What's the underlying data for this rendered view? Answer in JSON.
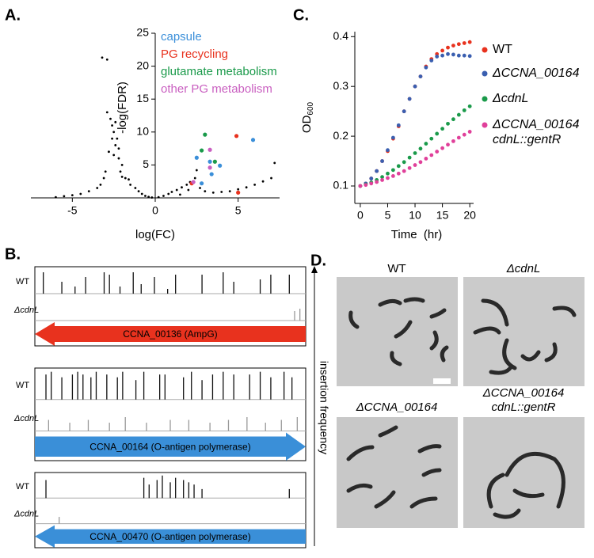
{
  "panels": {
    "a": "A.",
    "b": "B.",
    "c": "C.",
    "d": "D."
  },
  "chart_data": [
    {
      "type": "scatter",
      "xlabel": "log(FC)",
      "ylabel": "-log(FDR)",
      "xlim": [
        -7.5,
        7.5
      ],
      "ylim": [
        0,
        25
      ],
      "xticks": [
        -5,
        0,
        5
      ],
      "yticks": [
        5,
        10,
        15,
        20,
        25
      ],
      "series": [
        {
          "color": "#000000",
          "x": [
            -2.0,
            -2.2,
            -2.4,
            -2.5,
            -2.6,
            -2.8,
            -3.0,
            -2.3,
            -2.7,
            -2.9,
            -3.1,
            -3.3,
            -2.1,
            -1.8,
            -1.5,
            -1.2,
            -1.0,
            -0.8,
            -0.6,
            -0.4,
            -0.2,
            -2.5,
            -2.4,
            -2.6,
            -2.2,
            -3.5,
            -4.0,
            -4.5,
            -5.0,
            -5.5,
            -6.0,
            -2.9,
            -3.2,
            -1.6,
            -2.0,
            -2.8,
            0.2,
            0.5,
            0.8,
            1.0,
            1.3,
            1.6,
            1.9,
            2.1,
            2.4,
            2.7,
            3.0,
            3.5,
            4.0,
            4.5,
            5.0,
            5.5,
            6.0,
            6.5,
            7.0,
            1.5,
            2.0,
            2.5,
            7.2
          ],
          "values": [
            5,
            6,
            8,
            10,
            11,
            7,
            4,
            9,
            12,
            13,
            3,
            2,
            4,
            3,
            2,
            1.5,
            1,
            0.6,
            0.3,
            0.15,
            0.05,
            6.5,
            11.5,
            9,
            7.5,
            1.5,
            1,
            0.6,
            0.4,
            0.25,
            0.1,
            21,
            21.3,
            2.8,
            3.2,
            7,
            0.1,
            0.3,
            0.6,
            0.9,
            1.2,
            1.6,
            2.0,
            2.4,
            3.0,
            1.5,
            1.0,
            0.8,
            0.9,
            1.0,
            1.3,
            1.6,
            2.0,
            2.5,
            3.0,
            0.5,
            1.2,
            4.2,
            5.3
          ]
        },
        {
          "name": "capsule",
          "color": "#3b8fd9",
          "x": [
            2.5,
            3.3,
            3.4,
            3.9,
            5.9,
            2.8
          ],
          "values": [
            6.1,
            5.5,
            3.6,
            4.9,
            8.8,
            2.2
          ]
        },
        {
          "name": "PG recycling",
          "color": "#e8321e",
          "x": [
            4.9,
            5.0,
            2.2
          ],
          "values": [
            9.4,
            0.8,
            2.2
          ]
        },
        {
          "name": "glutamate metabolism",
          "color": "#1a9a4a",
          "x": [
            3.0,
            2.8,
            3.6
          ],
          "values": [
            9.6,
            7.2,
            5.5
          ]
        },
        {
          "name": "other PG metabolism",
          "color": "#c95fc0",
          "x": [
            3.3,
            3.3,
            2.3
          ],
          "values": [
            7.3,
            4.6,
            2.4
          ]
        }
      ]
    },
    {
      "type": "line",
      "xlabel": "Time  (hr)",
      "ylabel": {
        "text": "OD",
        "subscript": "600"
      },
      "xlim": [
        -1,
        20.7
      ],
      "ylim": [
        0.065,
        0.41
      ],
      "xticks": [
        0,
        5,
        10,
        15,
        20
      ],
      "yticks": [
        0.1,
        0.2,
        0.3,
        0.4
      ],
      "x": [
        0,
        1,
        2,
        3,
        4,
        5,
        6,
        7,
        8,
        9,
        10,
        11,
        12,
        13,
        14,
        15,
        16,
        17,
        18,
        19,
        20
      ],
      "series": [
        {
          "name": "WT",
          "color": "#e8321e",
          "values": [
            0.1,
            0.105,
            0.115,
            0.13,
            0.15,
            0.17,
            0.195,
            0.22,
            0.25,
            0.275,
            0.3,
            0.32,
            0.34,
            0.355,
            0.365,
            0.372,
            0.378,
            0.382,
            0.385,
            0.387,
            0.389
          ]
        },
        {
          "name": "ΔCCNA_00164",
          "color": "#3a5fb0",
          "values": [
            0.1,
            0.105,
            0.115,
            0.13,
            0.15,
            0.172,
            0.197,
            0.222,
            0.25,
            0.275,
            0.3,
            0.32,
            0.338,
            0.352,
            0.36,
            0.362,
            0.365,
            0.364,
            0.362,
            0.362,
            0.361
          ]
        },
        {
          "name": "ΔcdnL",
          "color": "#1a9a4a",
          "values": [
            0.1,
            0.103,
            0.107,
            0.112,
            0.118,
            0.125,
            0.132,
            0.14,
            0.148,
            0.157,
            0.166,
            0.175,
            0.185,
            0.195,
            0.205,
            0.215,
            0.225,
            0.234,
            0.243,
            0.252,
            0.26
          ]
        },
        {
          "name": "ΔCCNA_00164\ncdnL::gentR",
          "color": "#e0409a",
          "values": [
            0.1,
            0.102,
            0.105,
            0.108,
            0.112,
            0.116,
            0.12,
            0.125,
            0.13,
            0.136,
            0.142,
            0.148,
            0.155,
            0.162,
            0.169,
            0.176,
            0.183,
            0.19,
            0.197,
            0.203,
            0.209
          ]
        }
      ]
    }
  ],
  "tracks": {
    "axis_label": "insertion frequency",
    "rows": [
      "WT",
      "ΔcdnL"
    ],
    "genes": [
      {
        "label": "CCNA_00136 (AmpG)",
        "color": "#e8321e",
        "wt": [
          [
            2,
            0.9
          ],
          [
            9,
            0.5
          ],
          [
            14,
            0.3
          ],
          [
            18,
            0.7
          ],
          [
            25,
            0.9
          ],
          [
            27,
            0.8
          ],
          [
            31,
            0.3
          ],
          [
            36,
            0.9
          ],
          [
            39,
            0.4
          ],
          [
            44,
            0.7
          ],
          [
            49,
            0.2
          ],
          [
            52,
            0.8
          ],
          [
            62,
            0.8
          ],
          [
            70,
            0.9
          ],
          [
            74,
            0.5
          ],
          [
            84,
            0.6
          ],
          [
            88,
            0.8
          ],
          [
            95,
            0.8
          ]
        ],
        "cdnl": [
          [
            97,
            0.4
          ],
          [
            99,
            0.5
          ]
        ]
      },
      {
        "label": "CCNA_00164 (O-antigen polymerase)",
        "color": "#3a8fd8",
        "wt": [
          [
            3,
            0.9
          ],
          [
            5,
            1
          ],
          [
            9,
            0.8
          ],
          [
            13,
            0.9
          ],
          [
            15,
            1
          ],
          [
            17,
            0.9
          ],
          [
            20,
            0.8
          ],
          [
            22,
            1
          ],
          [
            26,
            0.9
          ],
          [
            30,
            0.8
          ],
          [
            32,
            1
          ],
          [
            37,
            0.7
          ],
          [
            40,
            1
          ],
          [
            46,
            0.9
          ],
          [
            48,
            0.9
          ],
          [
            55,
            0.8
          ],
          [
            58,
            1
          ],
          [
            62,
            0.7
          ],
          [
            66,
            0.9
          ],
          [
            70,
            1
          ],
          [
            74,
            0.9
          ],
          [
            80,
            0.9
          ],
          [
            84,
            1
          ],
          [
            88,
            0.8
          ],
          [
            93,
            1
          ],
          [
            96,
            0.8
          ]
        ],
        "cdnl": [
          [
            4,
            0.4
          ],
          [
            12,
            0.3
          ],
          [
            19,
            0.4
          ],
          [
            27,
            0.3
          ],
          [
            33,
            0.5
          ],
          [
            41,
            0.3
          ],
          [
            50,
            0.4
          ],
          [
            57,
            0.4
          ],
          [
            65,
            0.3
          ],
          [
            72,
            0.4
          ],
          [
            79,
            0.5
          ],
          [
            86,
            0.3
          ],
          [
            92,
            0.4
          ],
          [
            98,
            0.5
          ]
        ]
      },
      {
        "label": "CCNA_00470 (O-antigen polymerase)",
        "color": "#3a8fd8",
        "wt": [
          [
            3,
            0.8
          ],
          [
            40,
            0.9
          ],
          [
            42,
            0.6
          ],
          [
            45,
            0.8
          ],
          [
            47,
            1
          ],
          [
            50,
            0.7
          ],
          [
            52,
            0.9
          ],
          [
            55,
            0.8
          ],
          [
            57,
            0.7
          ],
          [
            59,
            0.6
          ],
          [
            62,
            0.4
          ],
          [
            95,
            0.4
          ]
        ],
        "cdnl": [
          [
            8,
            0.3
          ]
        ]
      }
    ]
  },
  "micrographs": [
    "WT",
    "ΔcdnL",
    "ΔCCNA_00164",
    "ΔCCNA_00164\ncdnL::gentR"
  ]
}
